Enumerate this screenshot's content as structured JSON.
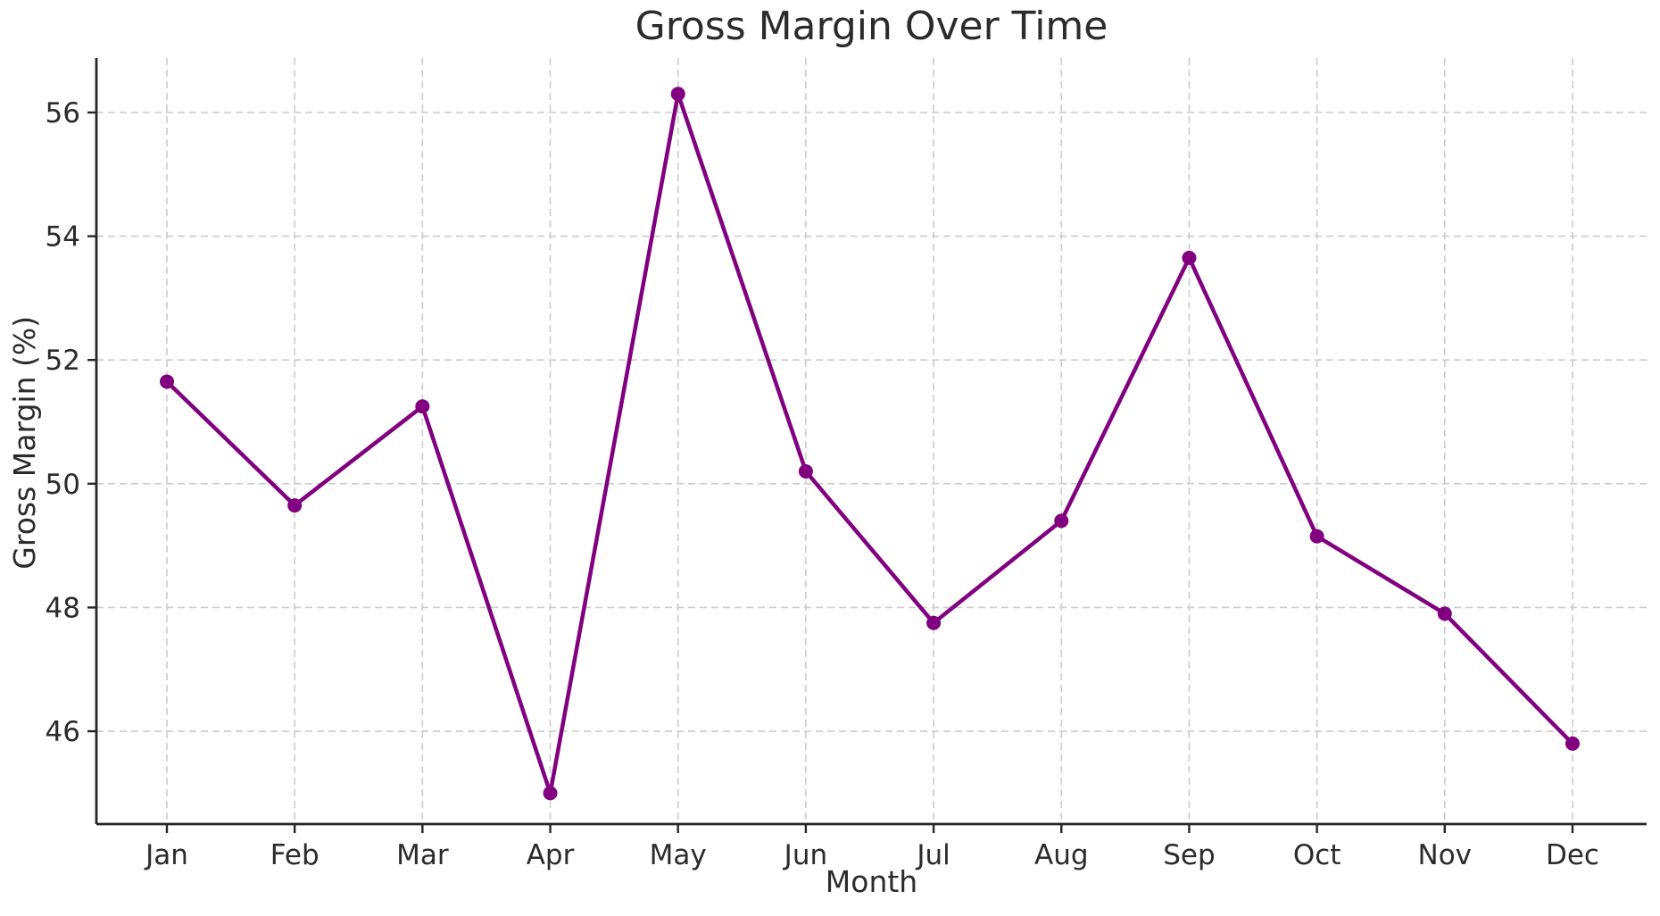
{
  "chart_data": {
    "type": "line",
    "title": "Gross Margin Over Time",
    "xlabel": "Month",
    "ylabel": "Gross Margin (%)",
    "categories": [
      "Jan",
      "Feb",
      "Mar",
      "Apr",
      "May",
      "Jun",
      "Jul",
      "Aug",
      "Sep",
      "Oct",
      "Nov",
      "Dec"
    ],
    "series": [
      {
        "name": "Gross Margin (%)",
        "values": [
          51.65,
          49.65,
          51.25,
          45.0,
          56.3,
          50.2,
          47.75,
          49.4,
          53.65,
          49.15,
          47.9,
          45.8
        ]
      }
    ],
    "yticks": [
      46,
      48,
      50,
      52,
      54,
      56
    ],
    "ylim": [
      44.5,
      56.88
    ],
    "grid": true,
    "grid_linestyle": "dashed",
    "legend_position": "none",
    "marker": "circle",
    "colors": {
      "line": "#800080",
      "marker": "#800080",
      "grid": "#cccccc",
      "axis": "#262626",
      "text": "#2b2b2b",
      "background": "#ffffff"
    }
  }
}
